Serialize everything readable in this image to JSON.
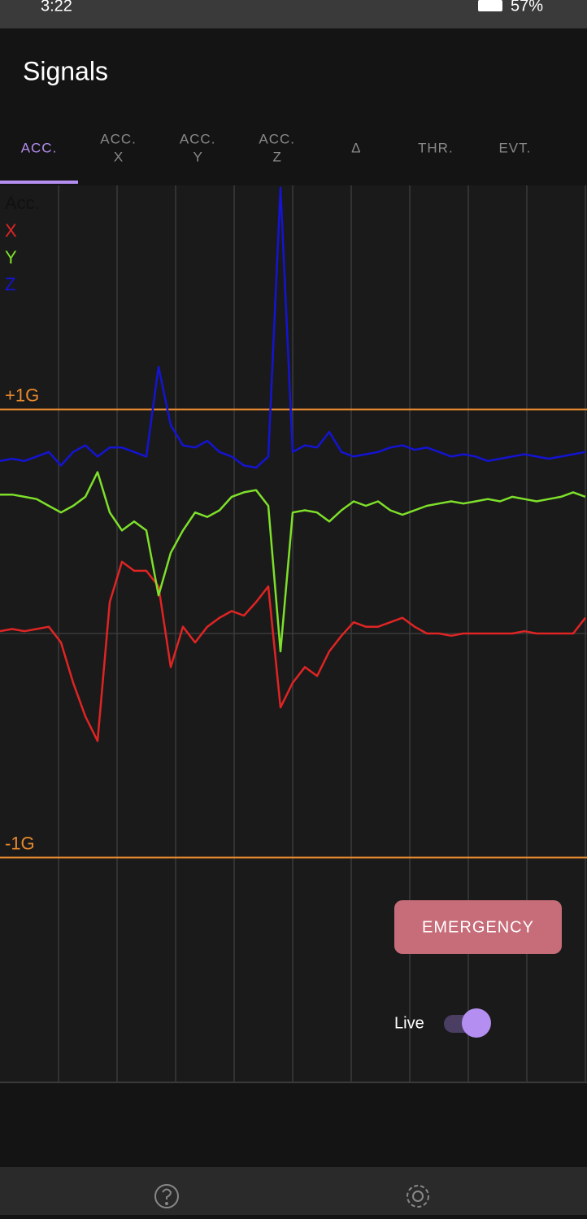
{
  "status_bar": {
    "time": "3:22",
    "battery": "57%"
  },
  "header": {
    "title": "Signals"
  },
  "tabs": [
    {
      "label": "ACC."
    },
    {
      "label": "ACC.",
      "sub": "X"
    },
    {
      "label": "ACC.",
      "sub": "Y"
    },
    {
      "label": "ACC.",
      "sub": "Z"
    },
    {
      "label": "Δ"
    },
    {
      "label": "THR."
    },
    {
      "label": "EVT."
    }
  ],
  "chart_data": {
    "type": "line",
    "legend_title": "Acc.",
    "legend": "upper left",
    "ylim": [
      -2,
      2
    ],
    "yticks": [
      {
        "value": 1,
        "label": "+1G"
      },
      {
        "value": -1,
        "label": "-1G"
      }
    ],
    "series": [
      {
        "name": "X",
        "color": "#e02424",
        "values": [
          0.01,
          0.02,
          0.01,
          0.02,
          0.03,
          -0.04,
          -0.22,
          -0.37,
          -0.48,
          0.14,
          0.32,
          0.28,
          0.28,
          0.21,
          -0.15,
          0.03,
          -0.04,
          0.03,
          0.07,
          0.1,
          0.08,
          0.14,
          0.21,
          -0.33,
          -0.22,
          -0.15,
          -0.19,
          -0.08,
          -0.01,
          0.05,
          0.03,
          0.03,
          0.05,
          0.07,
          0.03,
          0,
          0,
          -0.01,
          0,
          0,
          0,
          0,
          0,
          0.01,
          0,
          0,
          0,
          0,
          0.07
        ]
      },
      {
        "name": "Y",
        "color": "#7ee02a",
        "values": [
          0.62,
          0.62,
          0.61,
          0.6,
          0.57,
          0.54,
          0.57,
          0.61,
          0.72,
          0.54,
          0.46,
          0.5,
          0.46,
          0.17,
          0.36,
          0.46,
          0.54,
          0.52,
          0.55,
          0.61,
          0.63,
          0.64,
          0.57,
          -0.08,
          0.54,
          0.55,
          0.54,
          0.5,
          0.55,
          0.59,
          0.57,
          0.59,
          0.55,
          0.53,
          0.55,
          0.57,
          0.58,
          0.59,
          0.58,
          0.59,
          0.6,
          0.59,
          0.61,
          0.6,
          0.59,
          0.6,
          0.61,
          0.63,
          0.61
        ]
      },
      {
        "name": "Z",
        "color": "#1414d2",
        "values": [
          0.77,
          0.78,
          0.77,
          0.79,
          0.81,
          0.75,
          0.81,
          0.84,
          0.79,
          0.83,
          0.83,
          0.81,
          0.79,
          1.19,
          0.93,
          0.84,
          0.83,
          0.86,
          0.81,
          0.79,
          0.75,
          0.74,
          0.79,
          1.99,
          0.81,
          0.84,
          0.83,
          0.9,
          0.81,
          0.79,
          0.8,
          0.81,
          0.83,
          0.84,
          0.82,
          0.83,
          0.81,
          0.79,
          0.8,
          0.79,
          0.77,
          0.78,
          0.79,
          0.8,
          0.79,
          0.78,
          0.79,
          0.8,
          0.81
        ]
      }
    ]
  },
  "controls": {
    "emergency": "EMERGENCY",
    "live": "Live"
  }
}
